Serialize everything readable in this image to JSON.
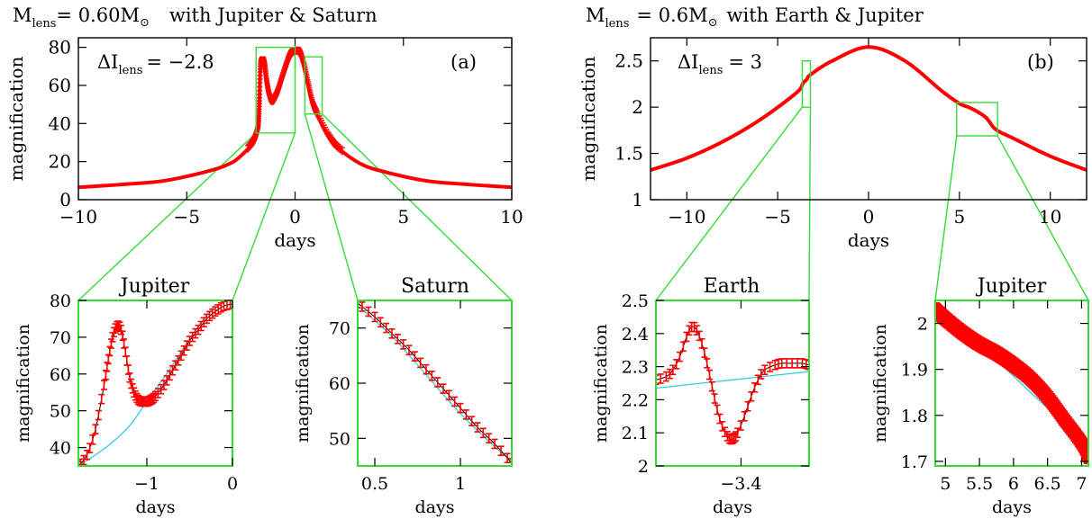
{
  "colors": {
    "data_points": "#ff0000",
    "model_curve": "#000000",
    "single_lens_curve": "#33ccdd",
    "zoom_box": "#33dd33"
  },
  "panels": {
    "a": {
      "title_prefix": "M",
      "title_sub": "lens",
      "title_eq": "= 0.60M",
      "title_rest": "with Jupiter & Saturn",
      "annotation_prefix": "ΔI",
      "annotation_sub": "lens",
      "annotation_value": "= −2.8",
      "label": "(a)"
    },
    "b": {
      "title_prefix": "M",
      "title_sub": "lens",
      "title_eq": "= 0.6M",
      "title_rest": "with Earth & Jupiter",
      "annotation_prefix": "ΔI",
      "annotation_sub": "lens",
      "annotation_value": "= 3",
      "label": "(b)"
    },
    "a1": {
      "title": "Jupiter"
    },
    "a2": {
      "title": "Saturn"
    },
    "b1": {
      "title": "Earth"
    },
    "b2": {
      "title": "Jupiter"
    }
  },
  "chart_data": [
    {
      "id": "a",
      "type": "line",
      "xlabel": "days",
      "ylabel": "magnification",
      "xlim": [
        -10,
        10
      ],
      "ylim": [
        0,
        85
      ],
      "xticks": [
        "−10",
        "−5",
        "0",
        "5",
        "10"
      ],
      "yticks": [
        "0",
        "20",
        "40",
        "60",
        "80"
      ],
      "series": [
        {
          "x": [
            -10,
            -8,
            -6,
            -4,
            -3,
            -2.5,
            -2,
            -1.8,
            -1.7,
            -1.65,
            -1.6,
            -1.5,
            -1.4,
            -1.3,
            -1.2,
            -1.1,
            -1.0,
            -0.8,
            -0.6,
            -0.4,
            -0.2,
            0,
            0.2,
            0.4,
            0.6,
            0.8,
            1.0,
            1.5,
            2,
            3,
            4,
            6,
            8,
            10
          ],
          "y": [
            6.5,
            8,
            10,
            15,
            19,
            23,
            29,
            33,
            38,
            50,
            68,
            73,
            69,
            60,
            54,
            52,
            52,
            56,
            63,
            70,
            76,
            78,
            77,
            70,
            60,
            50,
            45,
            34,
            27,
            19,
            15,
            10,
            8,
            6.5
          ]
        }
      ],
      "zoom_boxes": [
        {
          "x": [
            -1.8,
            0
          ],
          "y": [
            35,
            80
          ]
        },
        {
          "x": [
            0.45,
            1.25
          ],
          "y": [
            45,
            75
          ]
        }
      ]
    },
    {
      "id": "b",
      "type": "line",
      "xlabel": "days",
      "ylabel": "magnification",
      "xlim": [
        -12,
        12
      ],
      "ylim": [
        1,
        2.75
      ],
      "xticks": [
        "−10",
        "−5",
        "0",
        "5",
        "10"
      ],
      "yticks": [
        "1",
        "1.5",
        "2",
        "2.5"
      ],
      "series": [
        {
          "x": [
            -12,
            -10,
            -8,
            -6,
            -4,
            -3.6,
            -3.4,
            -3.2,
            -2,
            0,
            2,
            4,
            5,
            5.5,
            6,
            6.5,
            7,
            8,
            10,
            12
          ],
          "y": [
            1.32,
            1.45,
            1.63,
            1.86,
            2.15,
            2.26,
            2.3,
            2.35,
            2.5,
            2.65,
            2.5,
            2.18,
            2.04,
            2.0,
            1.95,
            1.88,
            1.76,
            1.66,
            1.47,
            1.32
          ]
        }
      ],
      "zoom_boxes": [
        {
          "x": [
            -3.65,
            -3.2
          ],
          "y": [
            2.0,
            2.5
          ]
        },
        {
          "x": [
            4.85,
            7.1
          ],
          "y": [
            1.69,
            2.05
          ]
        }
      ]
    },
    {
      "id": "a1",
      "type": "line",
      "title": "Jupiter",
      "xlabel": "days",
      "ylabel": "magnification",
      "xlim": [
        -1.8,
        0
      ],
      "ylim": [
        35,
        80
      ],
      "xticks": [
        "−1",
        "0"
      ],
      "yticks": [
        "40",
        "50",
        "60",
        "70",
        "80"
      ],
      "series": [
        {
          "name_hidden": "binary",
          "x": [
            -1.8,
            -1.7,
            -1.6,
            -1.5,
            -1.45,
            -1.4,
            -1.35,
            -1.3,
            -1.25,
            -1.2,
            -1.15,
            -1.1,
            -1.05,
            -1.0,
            -0.95,
            -0.9,
            -0.8,
            -0.7,
            -0.6,
            -0.5,
            -0.4,
            -0.3,
            -0.2,
            -0.1,
            0
          ],
          "y": [
            35,
            38,
            45,
            57,
            64,
            70,
            73,
            72,
            66,
            59,
            55,
            53,
            52.5,
            52.5,
            53,
            54,
            57,
            61,
            65,
            69,
            72,
            75,
            77,
            78.5,
            79
          ]
        },
        {
          "name_hidden": "single",
          "x": [
            -1.8,
            -1.6,
            -1.4,
            -1.2,
            -1.0,
            -0.8,
            -0.6,
            -0.4,
            -0.2
          ],
          "y": [
            35,
            38,
            41.5,
            46,
            52.5,
            59,
            66,
            73,
            79
          ]
        }
      ]
    },
    {
      "id": "a2",
      "type": "line",
      "title": "Saturn",
      "xlabel": "days",
      "ylabel": "magnification",
      "xlim": [
        0.4,
        1.3
      ],
      "ylim": [
        45,
        75
      ],
      "xticks": [
        "0.5",
        "1"
      ],
      "yticks": [
        "50",
        "60",
        "70"
      ],
      "series": [
        {
          "name_hidden": "binary",
          "x": [
            0.4,
            0.5,
            0.6,
            0.7,
            0.8,
            0.9,
            1.0,
            1.1,
            1.2,
            1.3
          ],
          "y": [
            74.5,
            72,
            69,
            66,
            62.5,
            59,
            55.5,
            52,
            49,
            45.5
          ]
        },
        {
          "name_hidden": "single",
          "x": [
            0.4,
            0.6,
            0.8,
            1.0,
            1.2,
            1.3
          ],
          "y": [
            74,
            68.5,
            61.5,
            54.5,
            48.5,
            46
          ]
        }
      ]
    },
    {
      "id": "b1",
      "type": "line",
      "title": "Earth",
      "xlabel": "days",
      "ylabel": "magnification",
      "xlim": [
        -3.65,
        -3.2
      ],
      "ylim": [
        2.0,
        2.5
      ],
      "xticks": [
        "−3.4"
      ],
      "yticks": [
        "2",
        "2.1",
        "2.2",
        "2.3",
        "2.4",
        "2.5"
      ],
      "series": [
        {
          "name_hidden": "binary",
          "x": [
            -3.65,
            -3.62,
            -3.6,
            -3.58,
            -3.56,
            -3.545,
            -3.53,
            -3.515,
            -3.5,
            -3.485,
            -3.47,
            -3.455,
            -3.44,
            -3.43,
            -3.42,
            -3.41,
            -3.39,
            -3.37,
            -3.35,
            -3.33,
            -3.3,
            -3.28,
            -3.25,
            -3.22,
            -3.2
          ],
          "y": [
            2.26,
            2.27,
            2.29,
            2.33,
            2.39,
            2.42,
            2.41,
            2.37,
            2.31,
            2.24,
            2.17,
            2.12,
            2.09,
            2.08,
            2.085,
            2.1,
            2.15,
            2.21,
            2.26,
            2.29,
            2.305,
            2.31,
            2.31,
            2.31,
            2.305
          ]
        },
        {
          "name_hidden": "single",
          "x": [
            -3.65,
            -3.2
          ],
          "y": [
            2.235,
            2.285
          ]
        }
      ]
    },
    {
      "id": "b2",
      "type": "line",
      "title": "Jupiter",
      "xlabel": "days",
      "ylabel": "magnification",
      "xlim": [
        4.85,
        7.1
      ],
      "ylim": [
        1.69,
        2.05
      ],
      "xticks": [
        "5",
        "5.5",
        "6",
        "6.5",
        "7"
      ],
      "yticks": [
        "1.7",
        "1.8",
        "1.9",
        "2"
      ],
      "series": [
        {
          "name_hidden": "binary",
          "x": [
            4.85,
            5.0,
            5.25,
            5.5,
            5.75,
            6.0,
            6.25,
            6.5,
            6.75,
            7.0,
            7.1
          ],
          "y": [
            2.03,
            2.01,
            1.98,
            1.955,
            1.935,
            1.91,
            1.88,
            1.84,
            1.79,
            1.74,
            1.71
          ]
        },
        {
          "name_hidden": "single",
          "x": [
            4.85,
            5.25,
            5.75,
            6.25,
            6.75,
            7.1
          ],
          "y": [
            2.03,
            1.985,
            1.92,
            1.85,
            1.78,
            1.72
          ]
        }
      ]
    }
  ]
}
